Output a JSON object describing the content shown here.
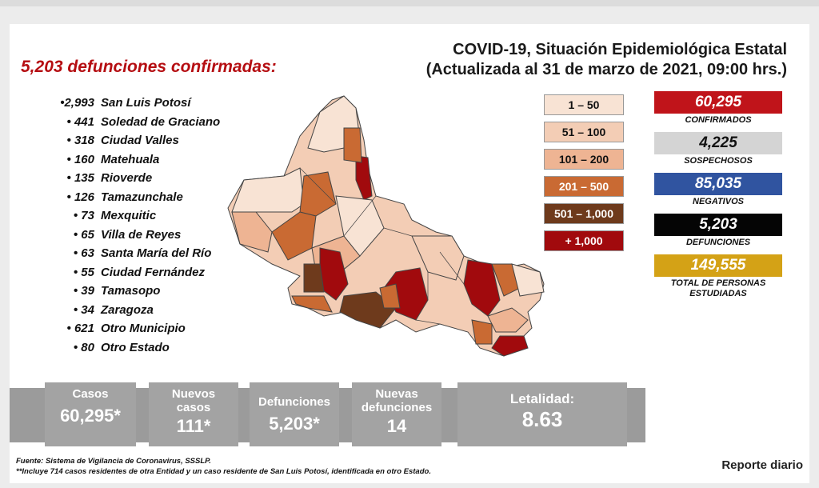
{
  "title_line1": "COVID-19, Situación Epidemiológica Estatal",
  "title_line2": "(Actualizada al 31 de marzo de 2021, 09:00 hrs.)",
  "deaths_heading": "5,203 defunciones confirmadas:",
  "deaths_list": [
    {
      "count": "•2,993",
      "place": "San Luis Potosí"
    },
    {
      "count": "• 441",
      "place": "Soledad de Graciano"
    },
    {
      "count": "• 318",
      "place": "Ciudad Valles"
    },
    {
      "count": "• 160",
      "place": "Matehuala"
    },
    {
      "count": "• 135",
      "place": "Rioverde"
    },
    {
      "count": "• 126",
      "place": "Tamazunchale"
    },
    {
      "count": "• 73",
      "place": "Mexquitic"
    },
    {
      "count": "• 65",
      "place": "Villa de Reyes"
    },
    {
      "count": "• 63",
      "place": "Santa María del Río"
    },
    {
      "count": "• 55",
      "place": "Ciudad Fernández"
    },
    {
      "count": "• 39",
      "place": "Tamasopo"
    },
    {
      "count": "• 34",
      "place": "Zaragoza"
    },
    {
      "count": "• 621",
      "place": "Otro Municipio"
    },
    {
      "count": "• 80",
      "place": "Otro Estado"
    }
  ],
  "legend": [
    {
      "label": "1 – 50",
      "color": "#f8e3d4",
      "text_color": "#111"
    },
    {
      "label": "51 – 100",
      "color": "#f3cdb5",
      "text_color": "#111"
    },
    {
      "label": "101 – 200",
      "color": "#eeb493",
      "text_color": "#111"
    },
    {
      "label": "201 – 500",
      "color": "#c96a33",
      "text_color": "#ffffff"
    },
    {
      "label": "501 – 1,000",
      "color": "#6e3a1c",
      "text_color": "#ffffff"
    },
    {
      "label": "+ 1,000",
      "color": "#a10a0d",
      "text_color": "#ffffff"
    }
  ],
  "stats": [
    {
      "value": "60,295",
      "label": "CONFIRMADOS",
      "bg": "#c0141a",
      "fg": "#ffffff"
    },
    {
      "value": "4,225",
      "label": "SOSPECHOSOS",
      "bg": "#d4d4d4",
      "fg": "#111111"
    },
    {
      "value": "85,035",
      "label": "NEGATIVOS",
      "bg": "#3054a0",
      "fg": "#ffffff"
    },
    {
      "value": "5,203",
      "label": "DEFUNCIONES",
      "bg": "#050505",
      "fg": "#ffffff"
    },
    {
      "value": "149,555",
      "label": "TOTAL DE PERSONAS ESTUDIADAS",
      "bg": "#d4a216",
      "fg": "#ffffff"
    }
  ],
  "summary": {
    "casos_label": "Casos",
    "casos_value": "60,295*",
    "nuevos_casos_label": "Nuevos casos",
    "nuevos_casos_value": "111*",
    "defunciones_label": "Defunciones",
    "defunciones_value": "5,203*",
    "nuevas_defunciones_label": "Nuevas defunciones",
    "nuevas_defunciones_value": "14",
    "letalidad_label": "Letalidad:",
    "letalidad_value": "8.63"
  },
  "footnote_source": "Fuente: Sistema de Vigilancia de Coronavirus, SSSLP.",
  "footnote_note": "**Incluye 714 casos residentes de otra Entidad y un caso residente de San Luis Potosí, identificada en otro Estado.",
  "report_label": "Reporte diario"
}
